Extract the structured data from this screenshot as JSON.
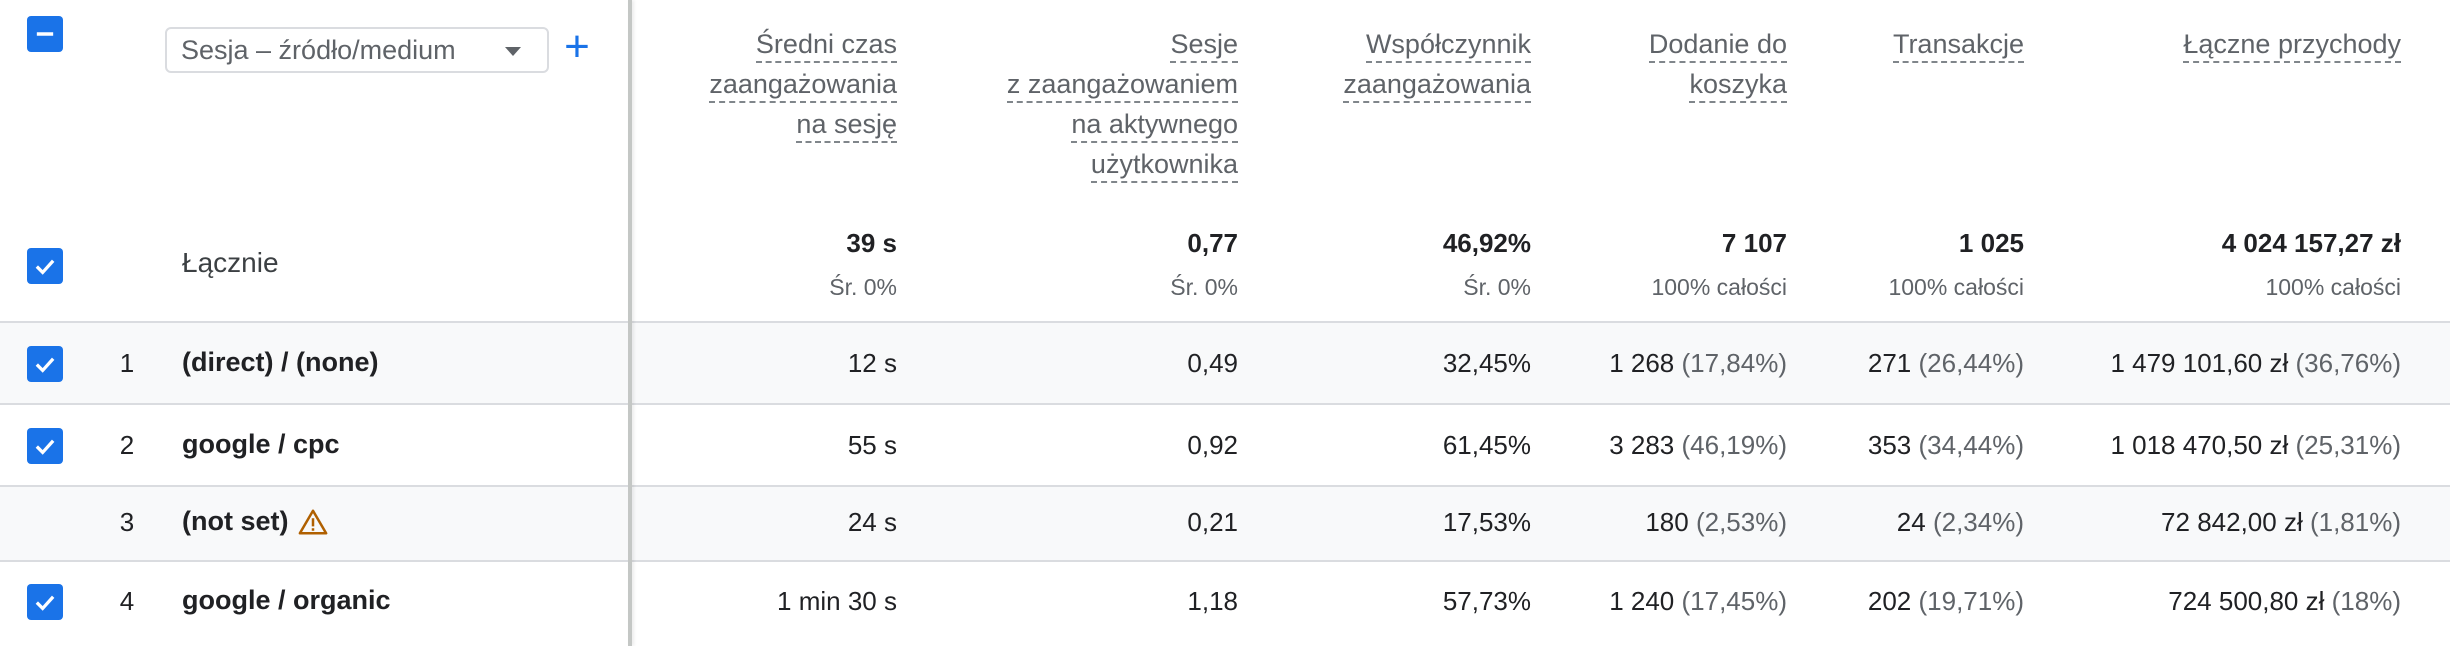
{
  "header": {
    "dimension_select": "Sesja – źródło/medium",
    "add_button": "+",
    "columns": [
      {
        "lines": [
          "Średni czas",
          "zaangażowania",
          "na sesję"
        ]
      },
      {
        "lines": [
          "Sesje",
          "z zaangażowaniem",
          "na aktywnego",
          "użytkownika"
        ]
      },
      {
        "lines": [
          "Współczynnik",
          "zaangażowania"
        ]
      },
      {
        "lines": [
          "Dodanie do",
          "koszyka"
        ]
      },
      {
        "lines": [
          "Transakcje"
        ]
      },
      {
        "lines": [
          "Łączne przychody"
        ]
      }
    ]
  },
  "totals": {
    "label": "Łącznie",
    "values": [
      "39 s",
      "0,77",
      "46,92%",
      "7 107",
      "1 025",
      "4 024 157,27 zł"
    ],
    "subs": [
      "Śr. 0%",
      "Śr. 0%",
      "Śr. 0%",
      "100% całości",
      "100% całości",
      "100% całości"
    ]
  },
  "rows": [
    {
      "rank": "1",
      "dimension": "(direct) / (none)",
      "checked": true,
      "warning": false,
      "cells": [
        {
          "value": "12 s",
          "pct": ""
        },
        {
          "value": "0,49",
          "pct": ""
        },
        {
          "value": "32,45%",
          "pct": ""
        },
        {
          "value": "1 268",
          "pct": "(17,84%)"
        },
        {
          "value": "271",
          "pct": "(26,44%)"
        },
        {
          "value": "1 479 101,60 zł",
          "pct": "(36,76%)"
        }
      ]
    },
    {
      "rank": "2",
      "dimension": "google / cpc",
      "checked": true,
      "warning": false,
      "cells": [
        {
          "value": "55 s",
          "pct": ""
        },
        {
          "value": "0,92",
          "pct": ""
        },
        {
          "value": "61,45%",
          "pct": ""
        },
        {
          "value": "3 283",
          "pct": "(46,19%)"
        },
        {
          "value": "353",
          "pct": "(34,44%)"
        },
        {
          "value": "1 018 470,50 zł",
          "pct": "(25,31%)"
        }
      ]
    },
    {
      "rank": "3",
      "dimension": "(not set)",
      "checked": false,
      "warning": true,
      "cells": [
        {
          "value": "24 s",
          "pct": ""
        },
        {
          "value": "0,21",
          "pct": ""
        },
        {
          "value": "17,53%",
          "pct": ""
        },
        {
          "value": "180",
          "pct": "(2,53%)"
        },
        {
          "value": "24",
          "pct": "(2,34%)"
        },
        {
          "value": "72 842,00 zł",
          "pct": "(1,81%)"
        }
      ]
    },
    {
      "rank": "4",
      "dimension": "google / organic",
      "checked": true,
      "warning": false,
      "cells": [
        {
          "value": "1 min 30 s",
          "pct": ""
        },
        {
          "value": "1,18",
          "pct": ""
        },
        {
          "value": "57,73%",
          "pct": ""
        },
        {
          "value": "1 240",
          "pct": "(17,45%)"
        },
        {
          "value": "202",
          "pct": "(19,71%)"
        },
        {
          "value": "724 500,80 zł",
          "pct": "(18%)"
        }
      ]
    }
  ],
  "colors": {
    "accent": "#1a73e8",
    "warning": "#b06000",
    "muted": "#5f6368"
  },
  "icons": {
    "select_all": "indeterminate-checkbox-icon",
    "row_check": "checkbox-checked-icon",
    "warning": "warning-triangle-icon",
    "dropdown": "caret-down-icon"
  }
}
